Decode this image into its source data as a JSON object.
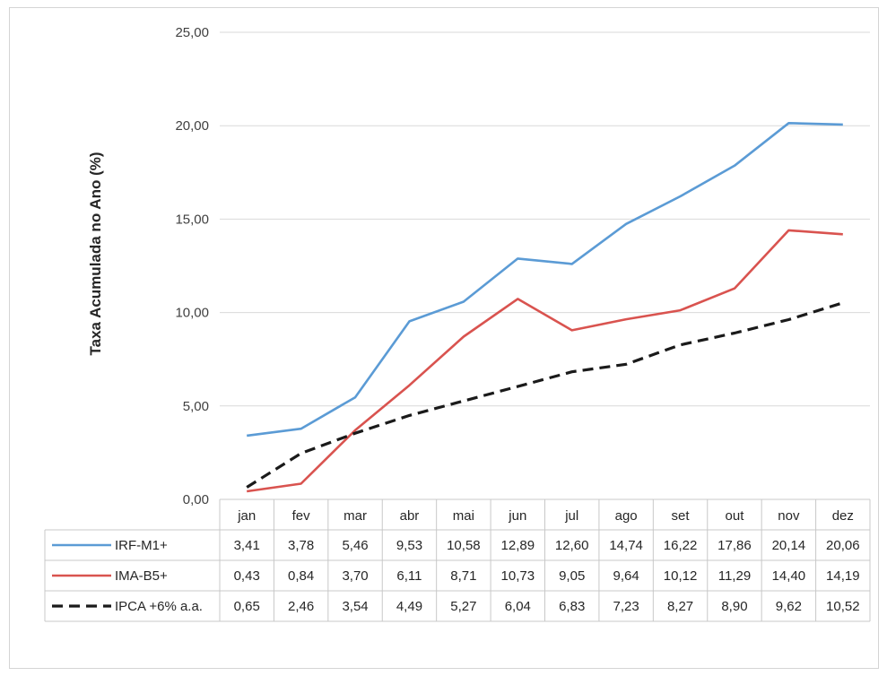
{
  "chart_data": {
    "type": "line",
    "ylabel": "Taxa Acumulada no Ano (%)",
    "xlabel": "",
    "ylim": [
      0,
      25
    ],
    "yticks": [
      "0,00",
      "5,00",
      "10,00",
      "15,00",
      "20,00",
      "25,00"
    ],
    "categories": [
      "jan",
      "fev",
      "mar",
      "abr",
      "mai",
      "jun",
      "jul",
      "ago",
      "set",
      "out",
      "nov",
      "dez"
    ],
    "legend_position": "data-table",
    "grid": true,
    "series": [
      {
        "name": "IRF-M1+",
        "color": "#5b9bd5",
        "dash": "solid",
        "values": [
          3.41,
          3.78,
          5.46,
          9.53,
          10.58,
          12.89,
          12.6,
          14.74,
          16.22,
          17.86,
          20.14,
          20.06
        ],
        "labels": [
          "3,41",
          "3,78",
          "5,46",
          "9,53",
          "10,58",
          "12,89",
          "12,60",
          "14,74",
          "16,22",
          "17,86",
          "20,14",
          "20,06"
        ]
      },
      {
        "name": "IMA-B5+",
        "color": "#d9534f",
        "dash": "solid",
        "values": [
          0.43,
          0.84,
          3.7,
          6.11,
          8.71,
          10.73,
          9.05,
          9.64,
          10.12,
          11.29,
          14.4,
          14.19
        ],
        "labels": [
          "0,43",
          "0,84",
          "3,70",
          "6,11",
          "8,71",
          "10,73",
          "9,05",
          "9,64",
          "10,12",
          "11,29",
          "14,40",
          "14,19"
        ]
      },
      {
        "name": "IPCA +6% a.a.",
        "color": "#1a1a1a",
        "dash": "dashed",
        "values": [
          0.65,
          2.46,
          3.54,
          4.49,
          5.27,
          6.04,
          6.83,
          7.23,
          8.27,
          8.9,
          9.62,
          10.52
        ],
        "labels": [
          "0,65",
          "2,46",
          "3,54",
          "4,49",
          "5,27",
          "6,04",
          "6,83",
          "7,23",
          "8,27",
          "8,90",
          "9,62",
          "10,52"
        ]
      }
    ]
  }
}
